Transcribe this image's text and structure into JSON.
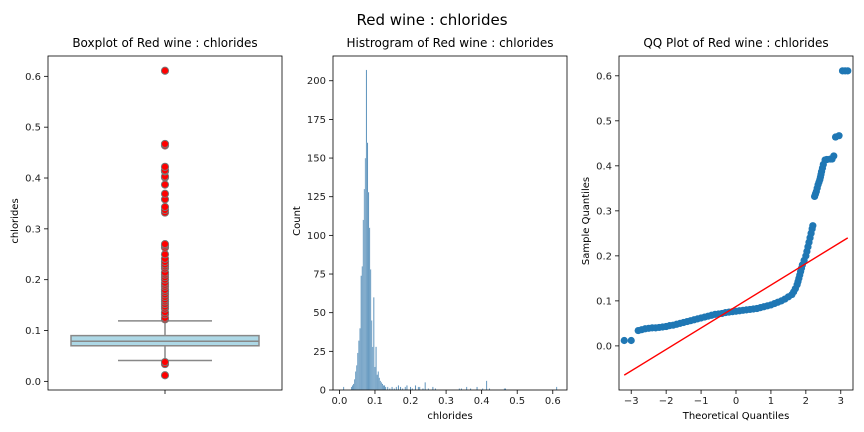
{
  "suptitle": "Red wine : chlorides",
  "colors": {
    "box_fill": "#add8e6",
    "box_edge": "#888888",
    "outlier": "#ff0000",
    "hist": "#3f7fb0",
    "qq_points": "#1f77b4",
    "qq_line": "#ff0000"
  },
  "chart_data": [
    {
      "type": "box",
      "title": "Boxplot of Red wine : chlorides",
      "ylabel": "chlorides",
      "ylim": [
        -0.017,
        0.64
      ],
      "yticks": [
        "0.0",
        "0.1",
        "0.2",
        "0.3",
        "0.4",
        "0.5",
        "0.6"
      ],
      "whisker_low": 0.041,
      "q1": 0.07,
      "median": 0.079,
      "q3": 0.09,
      "whisker_high": 0.119,
      "outliers": [
        0.012,
        0.034,
        0.038,
        0.122,
        0.125,
        0.132,
        0.136,
        0.143,
        0.147,
        0.152,
        0.157,
        0.161,
        0.166,
        0.171,
        0.176,
        0.18,
        0.186,
        0.19,
        0.194,
        0.2,
        0.205,
        0.21,
        0.214,
        0.222,
        0.226,
        0.23,
        0.235,
        0.241,
        0.25,
        0.263,
        0.267,
        0.27,
        0.332,
        0.337,
        0.343,
        0.358,
        0.369,
        0.387,
        0.401,
        0.403,
        0.413,
        0.414,
        0.415,
        0.422,
        0.464,
        0.467,
        0.611
      ]
    },
    {
      "type": "bar",
      "title": "Histrogram of Red wine : chlorides",
      "xlabel": "chlorides",
      "ylabel": "Count",
      "xlim": [
        -0.018,
        0.64
      ],
      "ylim": [
        0,
        216
      ],
      "xticks": [
        "0.0",
        "0.1",
        "0.2",
        "0.3",
        "0.4",
        "0.5",
        "0.6"
      ],
      "yticks": [
        "0",
        "25",
        "50",
        "75",
        "100",
        "125",
        "150",
        "175",
        "200"
      ],
      "bin_width": 0.003,
      "bins": [
        {
          "x": 0.012,
          "count": 2
        },
        {
          "x": 0.034,
          "count": 2
        },
        {
          "x": 0.037,
          "count": 3
        },
        {
          "x": 0.04,
          "count": 4
        },
        {
          "x": 0.043,
          "count": 7
        },
        {
          "x": 0.046,
          "count": 12
        },
        {
          "x": 0.049,
          "count": 16
        },
        {
          "x": 0.052,
          "count": 24
        },
        {
          "x": 0.055,
          "count": 32
        },
        {
          "x": 0.058,
          "count": 40
        },
        {
          "x": 0.061,
          "count": 74
        },
        {
          "x": 0.064,
          "count": 80
        },
        {
          "x": 0.067,
          "count": 110
        },
        {
          "x": 0.07,
          "count": 130
        },
        {
          "x": 0.073,
          "count": 150
        },
        {
          "x": 0.076,
          "count": 207
        },
        {
          "x": 0.079,
          "count": 160
        },
        {
          "x": 0.082,
          "count": 128
        },
        {
          "x": 0.085,
          "count": 105
        },
        {
          "x": 0.088,
          "count": 78
        },
        {
          "x": 0.091,
          "count": 45
        },
        {
          "x": 0.094,
          "count": 28
        },
        {
          "x": 0.097,
          "count": 60
        },
        {
          "x": 0.1,
          "count": 15
        },
        {
          "x": 0.103,
          "count": 28
        },
        {
          "x": 0.106,
          "count": 10
        },
        {
          "x": 0.109,
          "count": 12
        },
        {
          "x": 0.112,
          "count": 8
        },
        {
          "x": 0.115,
          "count": 6
        },
        {
          "x": 0.118,
          "count": 5
        },
        {
          "x": 0.121,
          "count": 4
        },
        {
          "x": 0.124,
          "count": 3
        },
        {
          "x": 0.127,
          "count": 3
        },
        {
          "x": 0.13,
          "count": 2
        },
        {
          "x": 0.136,
          "count": 2
        },
        {
          "x": 0.142,
          "count": 1
        },
        {
          "x": 0.148,
          "count": 2
        },
        {
          "x": 0.154,
          "count": 1
        },
        {
          "x": 0.16,
          "count": 2
        },
        {
          "x": 0.166,
          "count": 3
        },
        {
          "x": 0.172,
          "count": 2
        },
        {
          "x": 0.178,
          "count": 1
        },
        {
          "x": 0.185,
          "count": 2
        },
        {
          "x": 0.19,
          "count": 3
        },
        {
          "x": 0.2,
          "count": 2
        },
        {
          "x": 0.205,
          "count": 1
        },
        {
          "x": 0.214,
          "count": 3
        },
        {
          "x": 0.222,
          "count": 2
        },
        {
          "x": 0.226,
          "count": 2
        },
        {
          "x": 0.235,
          "count": 1
        },
        {
          "x": 0.241,
          "count": 5
        },
        {
          "x": 0.25,
          "count": 1
        },
        {
          "x": 0.263,
          "count": 2
        },
        {
          "x": 0.27,
          "count": 1
        },
        {
          "x": 0.337,
          "count": 1
        },
        {
          "x": 0.343,
          "count": 1
        },
        {
          "x": 0.358,
          "count": 2
        },
        {
          "x": 0.369,
          "count": 1
        },
        {
          "x": 0.387,
          "count": 2
        },
        {
          "x": 0.403,
          "count": 1
        },
        {
          "x": 0.414,
          "count": 6
        },
        {
          "x": 0.422,
          "count": 1
        },
        {
          "x": 0.464,
          "count": 1
        },
        {
          "x": 0.467,
          "count": 1
        },
        {
          "x": 0.611,
          "count": 2
        }
      ]
    },
    {
      "type": "scatter",
      "title": "QQ Plot of Red wine : chlorides",
      "xlabel": "Theoretical Quantiles",
      "ylabel": "Sample Quantiles",
      "xlim": [
        -3.35,
        3.35
      ],
      "ylim": [
        -0.098,
        0.644
      ],
      "xticks": [
        "−3",
        "−2",
        "−1",
        "0",
        "1",
        "2",
        "3"
      ],
      "yticks": [
        "0.0",
        "0.1",
        "0.2",
        "0.3",
        "0.4",
        "0.5",
        "0.6"
      ],
      "reference_line": {
        "x": [
          -3.2,
          3.2
        ],
        "y": [
          -0.065,
          0.24
        ]
      },
      "points": [
        [
          -3.2,
          0.012
        ],
        [
          -3.0,
          0.012
        ],
        [
          -2.8,
          0.034
        ],
        [
          -2.7,
          0.036
        ],
        [
          -2.6,
          0.038
        ],
        [
          -2.5,
          0.039
        ],
        [
          -2.4,
          0.04
        ],
        [
          -2.3,
          0.04
        ],
        [
          -2.2,
          0.041
        ],
        [
          -2.1,
          0.042
        ],
        [
          -2.0,
          0.043
        ],
        [
          -1.9,
          0.045
        ],
        [
          -1.8,
          0.046
        ],
        [
          -1.7,
          0.048
        ],
        [
          -1.6,
          0.05
        ],
        [
          -1.5,
          0.052
        ],
        [
          -1.4,
          0.054
        ],
        [
          -1.3,
          0.056
        ],
        [
          -1.2,
          0.058
        ],
        [
          -1.1,
          0.06
        ],
        [
          -1.0,
          0.062
        ],
        [
          -0.9,
          0.064
        ],
        [
          -0.8,
          0.066
        ],
        [
          -0.7,
          0.068
        ],
        [
          -0.6,
          0.07
        ],
        [
          -0.5,
          0.071
        ],
        [
          -0.4,
          0.072
        ],
        [
          -0.3,
          0.074
        ],
        [
          -0.2,
          0.075
        ],
        [
          -0.1,
          0.076
        ],
        [
          0.0,
          0.077
        ],
        [
          0.1,
          0.078
        ],
        [
          0.2,
          0.079
        ],
        [
          0.3,
          0.08
        ],
        [
          0.4,
          0.081
        ],
        [
          0.5,
          0.082
        ],
        [
          0.6,
          0.083
        ],
        [
          0.7,
          0.085
        ],
        [
          0.8,
          0.087
        ],
        [
          0.9,
          0.089
        ],
        [
          1.0,
          0.091
        ],
        [
          1.1,
          0.094
        ],
        [
          1.2,
          0.097
        ],
        [
          1.3,
          0.1
        ],
        [
          1.4,
          0.104
        ],
        [
          1.5,
          0.109
        ],
        [
          1.6,
          0.114
        ],
        [
          1.65,
          0.12
        ],
        [
          1.7,
          0.127
        ],
        [
          1.75,
          0.136
        ],
        [
          1.8,
          0.15
        ],
        [
          1.85,
          0.165
        ],
        [
          1.9,
          0.18
        ],
        [
          1.95,
          0.19
        ],
        [
          2.0,
          0.2
        ],
        [
          2.03,
          0.21
        ],
        [
          2.06,
          0.22
        ],
        [
          2.09,
          0.23
        ],
        [
          2.12,
          0.24
        ],
        [
          2.15,
          0.25
        ],
        [
          2.18,
          0.26
        ],
        [
          2.2,
          0.267
        ],
        [
          2.25,
          0.332
        ],
        [
          2.3,
          0.343
        ],
        [
          2.35,
          0.358
        ],
        [
          2.4,
          0.369
        ],
        [
          2.45,
          0.387
        ],
        [
          2.5,
          0.403
        ],
        [
          2.55,
          0.413
        ],
        [
          2.6,
          0.414
        ],
        [
          2.7,
          0.415
        ],
        [
          2.75,
          0.415
        ],
        [
          2.8,
          0.422
        ],
        [
          2.85,
          0.464
        ],
        [
          2.95,
          0.467
        ],
        [
          3.05,
          0.611
        ],
        [
          3.2,
          0.611
        ]
      ]
    }
  ]
}
